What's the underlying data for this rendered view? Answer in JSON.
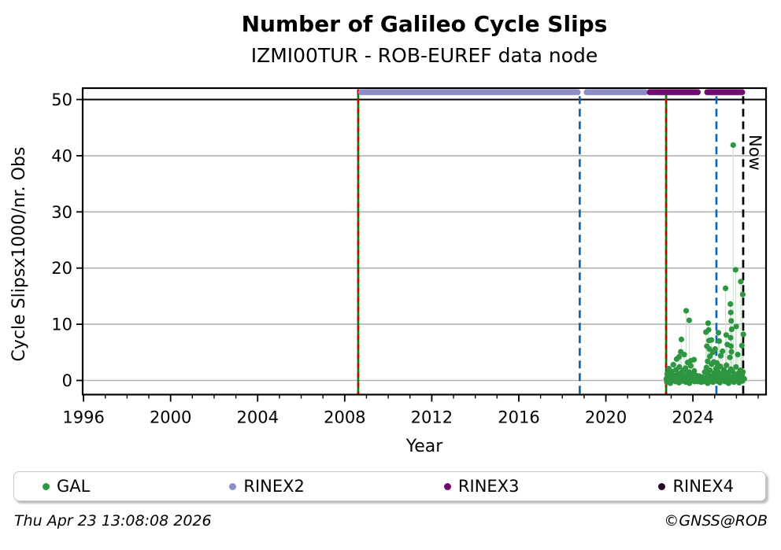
{
  "title": "Number of Galileo Cycle Slips",
  "subtitle": "IZMI00TUR - ROB-EUREF data node",
  "footer": {
    "timestamp": "Thu Apr 23 13:08:08 2026",
    "credit": "©GNSS@ROB"
  },
  "legend": {
    "items": [
      {
        "label": "GAL",
        "color": "#2e9640"
      },
      {
        "label": "RINEX2",
        "color": "#8d8dc8"
      },
      {
        "label": "RINEX3",
        "color": "#700d72"
      },
      {
        "label": "RINEX4",
        "color": "#270a24"
      }
    ]
  },
  "chart_data": {
    "type": "scatter",
    "title": "Number of Galileo Cycle Slips",
    "subtitle": "IZMI00TUR - ROB-EUREF data node",
    "xlabel": "Year",
    "ylabel": "Cycle Slipsx1000/nr. Obs",
    "xlim": [
      1995.96,
      2027.36
    ],
    "ylim": [
      -2.52,
      52.03
    ],
    "x_major_ticks": [
      1996,
      2000,
      2004,
      2008,
      2012,
      2016,
      2020,
      2024
    ],
    "x_minor_tick_years": [
      1996,
      2027
    ],
    "y_ticks": [
      0,
      10,
      20,
      30,
      40,
      50
    ],
    "grid": "horizontal-gray",
    "hline": {
      "value": 50,
      "color": "#000000"
    },
    "marker_bands": [
      {
        "name": "RINEX2",
        "color": "#8d8dc8",
        "value": 51.3,
        "segments": [
          [
            2008.62,
            2018.84
          ],
          [
            2018.98,
            2021.95
          ]
        ]
      },
      {
        "name": "RINEX3",
        "color": "#700d72",
        "value": 51.3,
        "segments": [
          [
            2021.88,
            2024.36
          ],
          [
            2024.52,
            2026.4
          ]
        ]
      }
    ],
    "vlines": [
      {
        "name": "rinex2-start",
        "x": 2008.62,
        "style": "solid",
        "color": "#007f00",
        "overlay_dash_color": "#d40000",
        "label": ""
      },
      {
        "name": "event-2018",
        "x": 2018.8,
        "style": "dashed",
        "color": "#1167b1",
        "label": ""
      },
      {
        "name": "gal-start",
        "x": 2022.77,
        "style": "solid",
        "color": "#007f00",
        "overlay_dash_color": "#d40000",
        "label": ""
      },
      {
        "name": "event-2025",
        "x": 2025.08,
        "style": "dashed",
        "color": "#1167b1",
        "label": ""
      },
      {
        "name": "now",
        "x": 2026.31,
        "style": "dashed",
        "color": "#000000",
        "label": "Now"
      }
    ],
    "series": [
      {
        "name": "GAL",
        "color": "#2e9640",
        "stem_color": "#cfe7cf",
        "points": [
          [
            2022.78,
            0.3
          ],
          [
            2022.82,
            1.2
          ],
          [
            2022.86,
            0.5
          ],
          [
            2022.9,
            2.1
          ],
          [
            2022.94,
            0.8
          ],
          [
            2022.98,
            0.2
          ],
          [
            2023.02,
            1.6
          ],
          [
            2023.06,
            0.4
          ],
          [
            2023.1,
            2.8
          ],
          [
            2023.14,
            0.9
          ],
          [
            2023.18,
            0.3
          ],
          [
            2023.22,
            1.9
          ],
          [
            2023.26,
            0.6
          ],
          [
            2023.3,
            1.1
          ],
          [
            2023.34,
            0.2
          ],
          [
            2023.38,
            2.4
          ],
          [
            2023.42,
            0.7
          ],
          [
            2023.46,
            1.4
          ],
          [
            2023.5,
            0.3
          ],
          [
            2023.54,
            0.9
          ],
          [
            2023.58,
            1.8
          ],
          [
            2023.62,
            0.4
          ],
          [
            2023.66,
            2.2
          ],
          [
            2023.7,
            0.6
          ],
          [
            2023.74,
            1.0
          ],
          [
            2023.78,
            0.3
          ],
          [
            2023.82,
            1.5
          ],
          [
            2023.86,
            0.8
          ],
          [
            2023.9,
            2.6
          ],
          [
            2023.94,
            0.5
          ],
          [
            2023.98,
            1.2
          ],
          [
            2024.02,
            0.2
          ],
          [
            2024.06,
            1.7
          ],
          [
            2024.1,
            0.6
          ],
          [
            2024.14,
            0.9
          ],
          [
            2022.8,
            -0.3
          ],
          [
            2022.88,
            0.1
          ],
          [
            2022.96,
            -0.5
          ],
          [
            2023.04,
            0.4
          ],
          [
            2023.12,
            0.0
          ],
          [
            2023.2,
            -0.2
          ],
          [
            2023.28,
            0.6
          ],
          [
            2023.36,
            -0.4
          ],
          [
            2023.44,
            0.2
          ],
          [
            2023.52,
            -0.1
          ],
          [
            2023.6,
            0.5
          ],
          [
            2023.68,
            -0.3
          ],
          [
            2023.76,
            0.1
          ],
          [
            2023.84,
            -0.5
          ],
          [
            2023.92,
            0.3
          ],
          [
            2024.0,
            0.0
          ],
          [
            2024.08,
            -0.2
          ],
          [
            2024.18,
            0.4
          ],
          [
            2024.23,
            -0.2
          ],
          [
            2024.28,
            0.8
          ],
          [
            2024.33,
            0.2
          ],
          [
            2024.38,
            -0.3
          ],
          [
            2024.43,
            0.6
          ],
          [
            2024.48,
            0.1
          ],
          [
            2024.5,
            0.4
          ],
          [
            2024.54,
            1.5
          ],
          [
            2024.58,
            0.3
          ],
          [
            2024.62,
            2.3
          ],
          [
            2024.66,
            0.7
          ],
          [
            2024.7,
            1.1
          ],
          [
            2024.74,
            0.2
          ],
          [
            2024.78,
            1.8
          ],
          [
            2024.82,
            0.5
          ],
          [
            2024.86,
            2.9
          ],
          [
            2024.9,
            0.8
          ],
          [
            2024.94,
            0.3
          ],
          [
            2024.98,
            1.3
          ],
          [
            2025.02,
            0.6
          ],
          [
            2025.06,
            2.1
          ],
          [
            2025.1,
            0.4
          ],
          [
            2025.14,
            1.7
          ],
          [
            2025.18,
            0.2
          ],
          [
            2025.22,
            0.9
          ],
          [
            2025.26,
            2.5
          ],
          [
            2025.3,
            0.6
          ],
          [
            2025.34,
            1.2
          ],
          [
            2025.38,
            0.3
          ],
          [
            2025.42,
            1.9
          ],
          [
            2025.46,
            0.5
          ],
          [
            2025.5,
            1.0
          ],
          [
            2025.54,
            2.7
          ],
          [
            2025.58,
            0.4
          ],
          [
            2025.62,
            1.4
          ],
          [
            2025.66,
            0.7
          ],
          [
            2025.7,
            0.2
          ],
          [
            2025.74,
            2.0
          ],
          [
            2025.78,
            0.6
          ],
          [
            2025.82,
            1.6
          ],
          [
            2025.86,
            0.3
          ],
          [
            2025.9,
            1.1
          ],
          [
            2025.94,
            0.5
          ],
          [
            2025.98,
            2.4
          ],
          [
            2026.02,
            0.8
          ],
          [
            2026.06,
            0.2
          ],
          [
            2026.1,
            1.3
          ],
          [
            2026.14,
            0.6
          ],
          [
            2026.18,
            1.8
          ],
          [
            2026.22,
            0.4
          ],
          [
            2026.26,
            0.9
          ],
          [
            2026.3,
            1.5
          ],
          [
            2026.34,
            0.3
          ],
          [
            2024.52,
            -0.2
          ],
          [
            2024.6,
            0.3
          ],
          [
            2024.68,
            -0.5
          ],
          [
            2024.76,
            0.1
          ],
          [
            2024.84,
            0.5
          ],
          [
            2024.92,
            -0.3
          ],
          [
            2025.0,
            0.2
          ],
          [
            2025.08,
            -0.1
          ],
          [
            2025.16,
            0.4
          ],
          [
            2025.24,
            -0.4
          ],
          [
            2025.32,
            0.0
          ],
          [
            2025.4,
            0.6
          ],
          [
            2025.48,
            -0.2
          ],
          [
            2025.56,
            0.3
          ],
          [
            2025.64,
            -0.5
          ],
          [
            2025.72,
            0.1
          ],
          [
            2025.8,
            0.4
          ],
          [
            2025.88,
            -0.3
          ],
          [
            2025.96,
            0.2
          ],
          [
            2026.04,
            0.0
          ],
          [
            2026.12,
            -0.4
          ],
          [
            2026.2,
            0.5
          ],
          [
            2026.28,
            -0.1
          ],
          [
            2026.36,
            0.3
          ],
          [
            2023.25,
            3.8
          ],
          [
            2023.36,
            4.2
          ],
          [
            2023.44,
            5.1
          ],
          [
            2023.47,
            7.3
          ],
          [
            2023.6,
            4.6
          ],
          [
            2023.69,
            12.4
          ],
          [
            2023.76,
            3.2
          ],
          [
            2023.83,
            10.7
          ],
          [
            2023.9,
            3.5
          ],
          [
            2024.05,
            3.7
          ],
          [
            2024.6,
            8.6
          ],
          [
            2024.64,
            6.1
          ],
          [
            2024.68,
            3.4
          ],
          [
            2024.7,
            10.2
          ],
          [
            2024.72,
            9.0
          ],
          [
            2024.74,
            7.1
          ],
          [
            2024.76,
            5.6
          ],
          [
            2024.78,
            4.3
          ],
          [
            2024.85,
            7.2
          ],
          [
            2024.91,
            5.0
          ],
          [
            2024.96,
            3.3
          ],
          [
            2025.02,
            5.6
          ],
          [
            2025.1,
            3.1
          ],
          [
            2025.17,
            8.5
          ],
          [
            2025.21,
            7.0
          ],
          [
            2025.28,
            4.4
          ],
          [
            2025.36,
            5.2
          ],
          [
            2025.5,
            16.4
          ],
          [
            2025.53,
            8.1
          ],
          [
            2025.58,
            6.4
          ],
          [
            2025.7,
            4.1
          ],
          [
            2025.72,
            13.6
          ],
          [
            2025.73,
            7.6
          ],
          [
            2025.74,
            12.1
          ],
          [
            2025.75,
            6.1
          ],
          [
            2025.76,
            10.6
          ],
          [
            2025.77,
            5.1
          ],
          [
            2025.78,
            9.1
          ],
          [
            2025.85,
            41.9
          ],
          [
            2025.96,
            19.7
          ],
          [
            2025.99,
            9.6
          ],
          [
            2026.06,
            4.6
          ],
          [
            2026.2,
            17.6
          ],
          [
            2026.25,
            6.2
          ],
          [
            2026.29,
            15.3
          ],
          [
            2026.32,
            8.2
          ]
        ]
      }
    ]
  }
}
